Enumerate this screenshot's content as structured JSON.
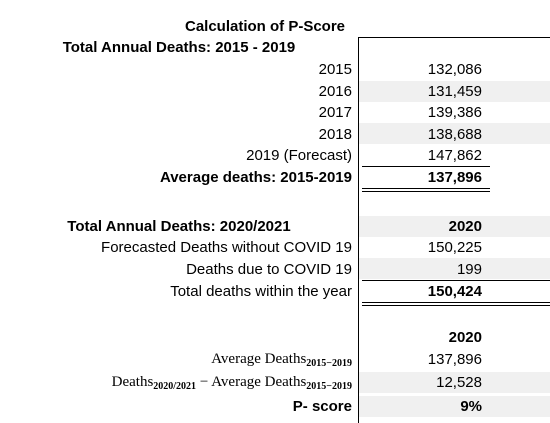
{
  "title": "Calculation of P-Score",
  "section1": {
    "heading": "Total Annual Deaths: 2015 - 2019",
    "rows": [
      [
        "2015",
        "132,086"
      ],
      [
        "2016",
        "131,459"
      ],
      [
        "2017",
        "139,386"
      ],
      [
        "2018",
        "138,688"
      ],
      [
        "2019 (Forecast)",
        "147,862"
      ]
    ],
    "average": {
      "label": "Average deaths: 2015-2019",
      "value": "137,896"
    }
  },
  "section2": {
    "heading": "Total Annual Deaths: 2020/2021",
    "year": "2020",
    "rows": [
      [
        "Forecasted Deaths without COVID 19",
        "150,225"
      ],
      [
        "Deaths due to COVID 19",
        "199"
      ]
    ],
    "total": {
      "label": "Total deaths within the year",
      "value": "150,424"
    }
  },
  "section3": {
    "year": "2020",
    "average_label": {
      "text": "Average Deaths",
      "sub": "2015−2019"
    },
    "average_value": "137,896",
    "difference_label": {
      "deaths": "Deaths",
      "deaths_sub": "2020/2021",
      "minus": "− Average Deaths",
      "avg_sub": "2015−2019"
    },
    "difference_value": "12,528",
    "p_score_label": "P- score",
    "p_score_value": "9%"
  }
}
